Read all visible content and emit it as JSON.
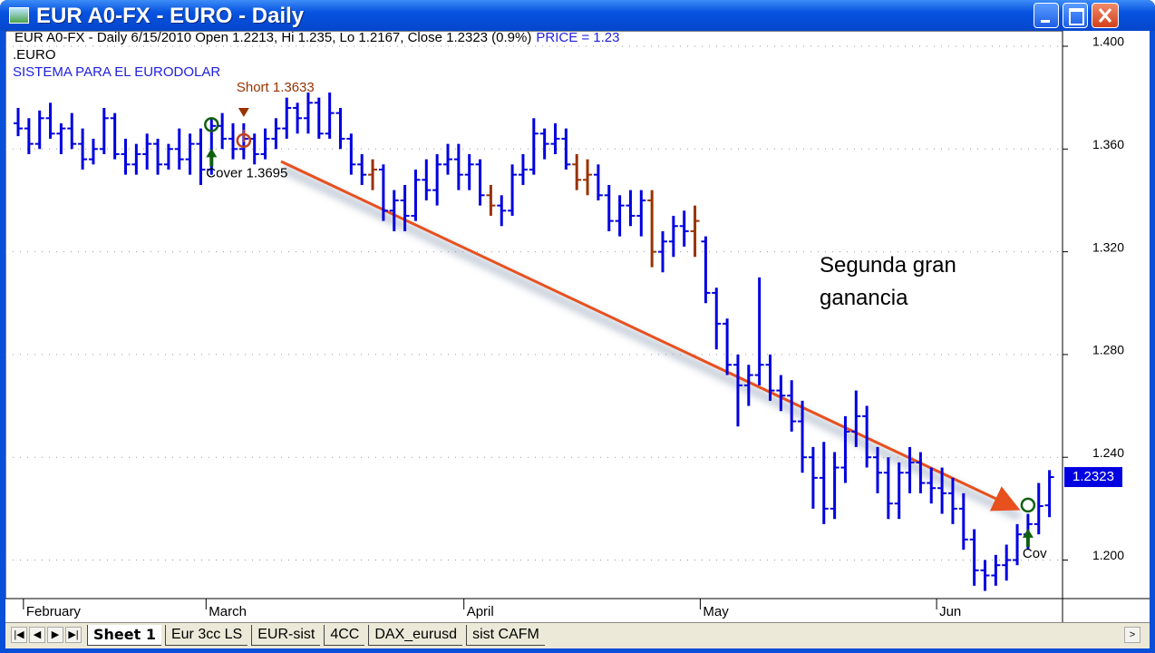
{
  "window": {
    "title": "EUR A0-FX - EURO - Daily"
  },
  "chart_data": {
    "type": "ohlc",
    "info": "EUR A0-FX - Daily 6/15/2010 Open 1.2213, Hi 1.235, Lo 1.2167, Close 1.2323 (0.9%)",
    "indicator": "PRICE = 1.23",
    "symbol": ".EURO",
    "system": "SISTEMA PARA EL EURODOLAR",
    "note": "Segunda gran ganancia",
    "color": "#0000e0",
    "short_color": "#993300",
    "categories": [
      null,
      "February",
      null,
      null,
      null,
      null,
      null,
      null,
      null,
      null,
      null,
      null,
      null,
      null,
      null,
      null,
      null,
      null,
      "March",
      null,
      null,
      null,
      null,
      null,
      null,
      null,
      null,
      null,
      null,
      null,
      null,
      null,
      null,
      null,
      null,
      null,
      null,
      null,
      null,
      null,
      null,
      null,
      "April",
      null,
      null,
      null,
      null,
      null,
      null,
      null,
      null,
      null,
      null,
      null,
      null,
      null,
      null,
      null,
      null,
      null,
      null,
      null,
      null,
      null,
      "May",
      null,
      null,
      null,
      null,
      null,
      null,
      null,
      null,
      null,
      null,
      null,
      null,
      null,
      null,
      null,
      null,
      null,
      null,
      null,
      null,
      null,
      "Jun",
      null,
      null,
      null,
      null,
      null,
      null,
      null,
      null,
      null,
      null
    ],
    "open": [
      1.37,
      1.368,
      1.362,
      1.372,
      1.366,
      1.368,
      1.362,
      1.356,
      1.36,
      1.372,
      1.358,
      1.354,
      1.358,
      1.362,
      1.354,
      1.36,
      1.356,
      1.362,
      1.352,
      1.369,
      1.364,
      1.36,
      1.364,
      1.358,
      1.364,
      1.368,
      1.376,
      1.372,
      1.378,
      1.366,
      1.374,
      1.364,
      1.354,
      1.35,
      1.352,
      1.336,
      1.34,
      1.334,
      1.348,
      1.344,
      1.354,
      1.356,
      1.35,
      1.354,
      1.342,
      1.338,
      1.336,
      1.35,
      1.352,
      1.366,
      1.362,
      1.364,
      1.354,
      1.348,
      1.35,
      1.342,
      1.332,
      1.338,
      1.334,
      1.34,
      1.32,
      1.324,
      1.33,
      1.328,
      1.324,
      1.304,
      1.292,
      1.276,
      1.268,
      1.272,
      1.276,
      1.266,
      1.264,
      1.254,
      1.24,
      1.232,
      1.22,
      1.236,
      1.25,
      1.256,
      1.24,
      1.234,
      1.222,
      1.234,
      1.238,
      1.23,
      1.228,
      1.226,
      1.22,
      1.208,
      1.196,
      1.194,
      1.198,
      1.2,
      1.21,
      1.214,
      1.2213
    ],
    "high": [
      1.376,
      1.372,
      1.375,
      1.378,
      1.37,
      1.374,
      1.368,
      1.364,
      1.376,
      1.374,
      1.364,
      1.362,
      1.366,
      1.364,
      1.362,
      1.368,
      1.366,
      1.368,
      1.372,
      1.374,
      1.37,
      1.37,
      1.366,
      1.368,
      1.372,
      1.38,
      1.378,
      1.382,
      1.38,
      1.382,
      1.376,
      1.366,
      1.358,
      1.356,
      1.354,
      1.344,
      1.346,
      1.352,
      1.356,
      1.358,
      1.362,
      1.362,
      1.358,
      1.356,
      1.346,
      1.342,
      1.354,
      1.358,
      1.372,
      1.368,
      1.37,
      1.368,
      1.358,
      1.356,
      1.354,
      1.346,
      1.342,
      1.344,
      1.344,
      1.344,
      1.328,
      1.334,
      1.336,
      1.338,
      1.326,
      1.306,
      1.294,
      1.28,
      1.276,
      1.31,
      1.28,
      1.272,
      1.27,
      1.262,
      1.244,
      1.246,
      1.242,
      1.256,
      1.266,
      1.26,
      1.244,
      1.24,
      1.238,
      1.244,
      1.242,
      1.236,
      1.236,
      1.232,
      1.226,
      1.212,
      1.2,
      1.202,
      1.206,
      1.214,
      1.218,
      1.23,
      1.235
    ],
    "low": [
      1.365,
      1.358,
      1.36,
      1.364,
      1.358,
      1.36,
      1.352,
      1.354,
      1.358,
      1.356,
      1.35,
      1.35,
      1.352,
      1.35,
      1.352,
      1.352,
      1.35,
      1.346,
      1.35,
      1.36,
      1.356,
      1.356,
      1.354,
      1.356,
      1.36,
      1.364,
      1.366,
      1.366,
      1.364,
      1.364,
      1.36,
      1.35,
      1.346,
      1.344,
      1.332,
      1.328,
      1.328,
      1.332,
      1.34,
      1.338,
      1.35,
      1.344,
      1.344,
      1.338,
      1.334,
      1.33,
      1.334,
      1.346,
      1.35,
      1.356,
      1.358,
      1.352,
      1.344,
      1.342,
      1.34,
      1.328,
      1.326,
      1.33,
      1.326,
      1.314,
      1.312,
      1.318,
      1.322,
      1.318,
      1.3,
      1.282,
      1.272,
      1.252,
      1.26,
      1.268,
      1.262,
      1.258,
      1.25,
      1.234,
      1.22,
      1.214,
      1.216,
      1.23,
      1.244,
      1.236,
      1.226,
      1.216,
      1.216,
      1.226,
      1.226,
      1.222,
      1.218,
      1.214,
      1.204,
      1.19,
      1.188,
      1.19,
      1.192,
      1.198,
      1.204,
      1.21,
      1.2167
    ],
    "close": [
      1.368,
      1.362,
      1.372,
      1.366,
      1.368,
      1.362,
      1.356,
      1.36,
      1.372,
      1.358,
      1.354,
      1.358,
      1.362,
      1.354,
      1.36,
      1.356,
      1.362,
      1.352,
      1.369,
      1.364,
      1.36,
      1.364,
      1.358,
      1.364,
      1.368,
      1.376,
      1.372,
      1.378,
      1.366,
      1.374,
      1.364,
      1.354,
      1.35,
      1.352,
      1.336,
      1.34,
      1.334,
      1.348,
      1.344,
      1.354,
      1.356,
      1.35,
      1.354,
      1.342,
      1.338,
      1.336,
      1.35,
      1.352,
      1.366,
      1.362,
      1.364,
      1.354,
      1.348,
      1.35,
      1.342,
      1.332,
      1.338,
      1.334,
      1.34,
      1.32,
      1.324,
      1.33,
      1.328,
      1.332,
      1.304,
      1.292,
      1.276,
      1.268,
      1.272,
      1.276,
      1.266,
      1.264,
      1.254,
      1.24,
      1.232,
      1.22,
      1.236,
      1.25,
      1.256,
      1.24,
      1.234,
      1.222,
      1.234,
      1.238,
      1.23,
      1.228,
      1.226,
      1.22,
      1.208,
      1.196,
      1.194,
      1.198,
      1.2,
      1.21,
      1.214,
      1.221,
      1.2323
    ],
    "short_bars": [
      33,
      44,
      52,
      53,
      59,
      63
    ],
    "signals": [
      {
        "kind": "cover",
        "label": "Cover 1.3695",
        "value": 1.3695,
        "bar": 18
      },
      {
        "kind": "short",
        "label": "Short 1.3633",
        "value": 1.3633,
        "bar": 21
      },
      {
        "kind": "cover",
        "label": "Cov",
        "value": 1.2214,
        "bar": 94
      }
    ],
    "ylim": [
      1.185,
      1.406
    ],
    "yticks": [
      {
        "value": 1.2,
        "label": "1.200"
      },
      {
        "value": 1.24,
        "label": "1.240"
      },
      {
        "value": 1.28,
        "label": "1.280"
      },
      {
        "value": 1.32,
        "label": "1.320"
      },
      {
        "value": 1.36,
        "label": "1.360"
      },
      {
        "value": 1.4,
        "label": "1.400"
      }
    ],
    "grid": true
  },
  "tabs": [
    "Sheet 1",
    "Eur 3cc LS",
    "EUR-sist",
    "4CC",
    "DAX_eurusd",
    "sist CAFM"
  ]
}
